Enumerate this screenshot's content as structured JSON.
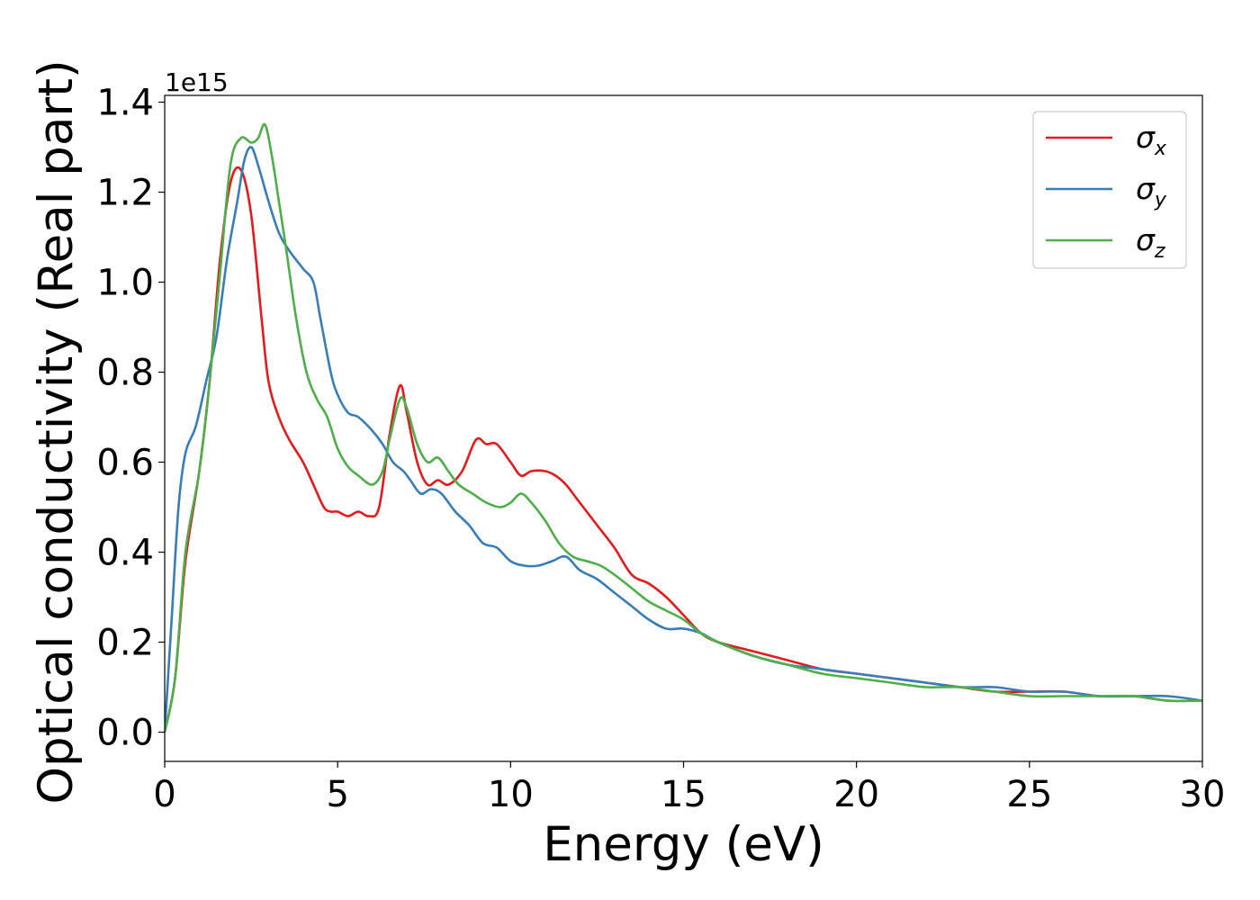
{
  "chart_data": {
    "type": "line",
    "xlabel": "Energy (eV)",
    "ylabel": "Optical conductivity (Real part)",
    "y_offset_label": "1e15",
    "y_multiplier": 1000000000000000.0,
    "xlim": [
      0,
      30
    ],
    "ylim": [
      -0.065,
      1.415
    ],
    "x_ticks": [
      0,
      5,
      10,
      15,
      20,
      25,
      30
    ],
    "y_ticks": [
      0.0,
      0.2,
      0.4,
      0.6,
      0.8,
      1.0,
      1.2,
      1.4
    ],
    "x_tick_labels": [
      "0",
      "5",
      "10",
      "15",
      "20",
      "25",
      "30"
    ],
    "y_tick_labels": [
      "0.0",
      "0.2",
      "0.4",
      "0.6",
      "0.8",
      "1.0",
      "1.2",
      "1.4"
    ],
    "grid": false,
    "legend_position": "top-right",
    "series": [
      {
        "name": "σx",
        "symbol": "σ",
        "subscript": "x",
        "color": "#e41a1c",
        "x": [
          0,
          0.3,
          0.6,
          1.0,
          1.3,
          1.6,
          1.9,
          2.2,
          2.5,
          2.8,
          3.0,
          3.3,
          3.6,
          4.0,
          4.3,
          4.6,
          4.8,
          5.0,
          5.3,
          5.6,
          5.9,
          6.2,
          6.5,
          6.8,
          7.0,
          7.3,
          7.6,
          7.9,
          8.2,
          8.6,
          9.0,
          9.3,
          9.6,
          10.0,
          10.3,
          10.6,
          11.0,
          11.3,
          11.6,
          12.0,
          12.5,
          13.0,
          13.5,
          14.0,
          14.5,
          15.0,
          15.5,
          16.0,
          17.0,
          18.0,
          19.0,
          20.0,
          21.0,
          22.0,
          23.0,
          24.0,
          25.0,
          26.0,
          27.0,
          28.0,
          29.0,
          30.0
        ],
        "y": [
          0.0,
          0.12,
          0.38,
          0.58,
          0.78,
          1.05,
          1.22,
          1.25,
          1.15,
          0.92,
          0.78,
          0.7,
          0.65,
          0.6,
          0.55,
          0.5,
          0.49,
          0.49,
          0.48,
          0.49,
          0.48,
          0.5,
          0.66,
          0.77,
          0.71,
          0.6,
          0.55,
          0.56,
          0.55,
          0.58,
          0.65,
          0.64,
          0.64,
          0.6,
          0.57,
          0.58,
          0.58,
          0.57,
          0.55,
          0.51,
          0.46,
          0.41,
          0.35,
          0.33,
          0.3,
          0.26,
          0.22,
          0.2,
          0.18,
          0.16,
          0.14,
          0.13,
          0.12,
          0.11,
          0.1,
          0.09,
          0.09,
          0.09,
          0.08,
          0.08,
          0.07,
          0.07
        ]
      },
      {
        "name": "σy",
        "symbol": "σ",
        "subscript": "y",
        "color": "#377eb8",
        "x": [
          0,
          0.2,
          0.4,
          0.6,
          0.9,
          1.2,
          1.5,
          1.8,
          2.1,
          2.3,
          2.5,
          2.7,
          3.0,
          3.3,
          3.6,
          4.0,
          4.3,
          4.5,
          4.8,
          5.0,
          5.3,
          5.6,
          6.0,
          6.3,
          6.6,
          6.9,
          7.1,
          7.4,
          7.7,
          8.0,
          8.4,
          8.8,
          9.2,
          9.6,
          10.0,
          10.4,
          10.8,
          11.2,
          11.6,
          12.0,
          12.5,
          13.0,
          13.5,
          14.0,
          14.5,
          15.0,
          15.5,
          16.0,
          17.0,
          18.0,
          19.0,
          20.0,
          21.0,
          22.0,
          23.0,
          24.0,
          25.0,
          26.0,
          27.0,
          28.0,
          29.0,
          30.0
        ],
        "y": [
          0.0,
          0.25,
          0.5,
          0.62,
          0.68,
          0.78,
          0.88,
          1.05,
          1.18,
          1.27,
          1.3,
          1.26,
          1.18,
          1.11,
          1.07,
          1.03,
          1.0,
          0.92,
          0.8,
          0.75,
          0.71,
          0.7,
          0.67,
          0.64,
          0.6,
          0.58,
          0.56,
          0.53,
          0.54,
          0.53,
          0.49,
          0.46,
          0.42,
          0.41,
          0.38,
          0.37,
          0.37,
          0.38,
          0.39,
          0.36,
          0.34,
          0.31,
          0.28,
          0.25,
          0.23,
          0.23,
          0.22,
          0.2,
          0.17,
          0.15,
          0.14,
          0.13,
          0.12,
          0.11,
          0.1,
          0.1,
          0.09,
          0.09,
          0.08,
          0.08,
          0.08,
          0.07
        ]
      },
      {
        "name": "σz",
        "symbol": "σ",
        "subscript": "z",
        "color": "#4daf4a",
        "x": [
          0,
          0.3,
          0.6,
          1.0,
          1.3,
          1.6,
          1.9,
          2.2,
          2.5,
          2.7,
          2.9,
          3.1,
          3.3,
          3.5,
          3.8,
          4.1,
          4.4,
          4.7,
          5.0,
          5.3,
          5.6,
          6.0,
          6.3,
          6.5,
          6.8,
          7.0,
          7.3,
          7.6,
          7.9,
          8.2,
          8.5,
          8.9,
          9.3,
          9.7,
          10.0,
          10.3,
          10.6,
          11.0,
          11.4,
          11.8,
          12.2,
          12.6,
          13.0,
          13.5,
          14.0,
          14.5,
          15.0,
          15.5,
          16.0,
          17.0,
          18.0,
          19.0,
          20.0,
          21.0,
          22.0,
          23.0,
          24.0,
          25.0,
          26.0,
          27.0,
          28.0,
          29.0,
          30.0
        ],
        "y": [
          0.0,
          0.12,
          0.4,
          0.58,
          0.78,
          1.02,
          1.26,
          1.32,
          1.31,
          1.32,
          1.35,
          1.28,
          1.18,
          1.08,
          0.92,
          0.8,
          0.74,
          0.7,
          0.63,
          0.59,
          0.57,
          0.55,
          0.58,
          0.65,
          0.74,
          0.72,
          0.64,
          0.6,
          0.61,
          0.58,
          0.55,
          0.53,
          0.51,
          0.5,
          0.51,
          0.53,
          0.51,
          0.47,
          0.42,
          0.39,
          0.38,
          0.37,
          0.35,
          0.32,
          0.29,
          0.27,
          0.25,
          0.22,
          0.2,
          0.17,
          0.15,
          0.13,
          0.12,
          0.11,
          0.1,
          0.1,
          0.09,
          0.08,
          0.08,
          0.08,
          0.08,
          0.07,
          0.07
        ]
      }
    ]
  }
}
